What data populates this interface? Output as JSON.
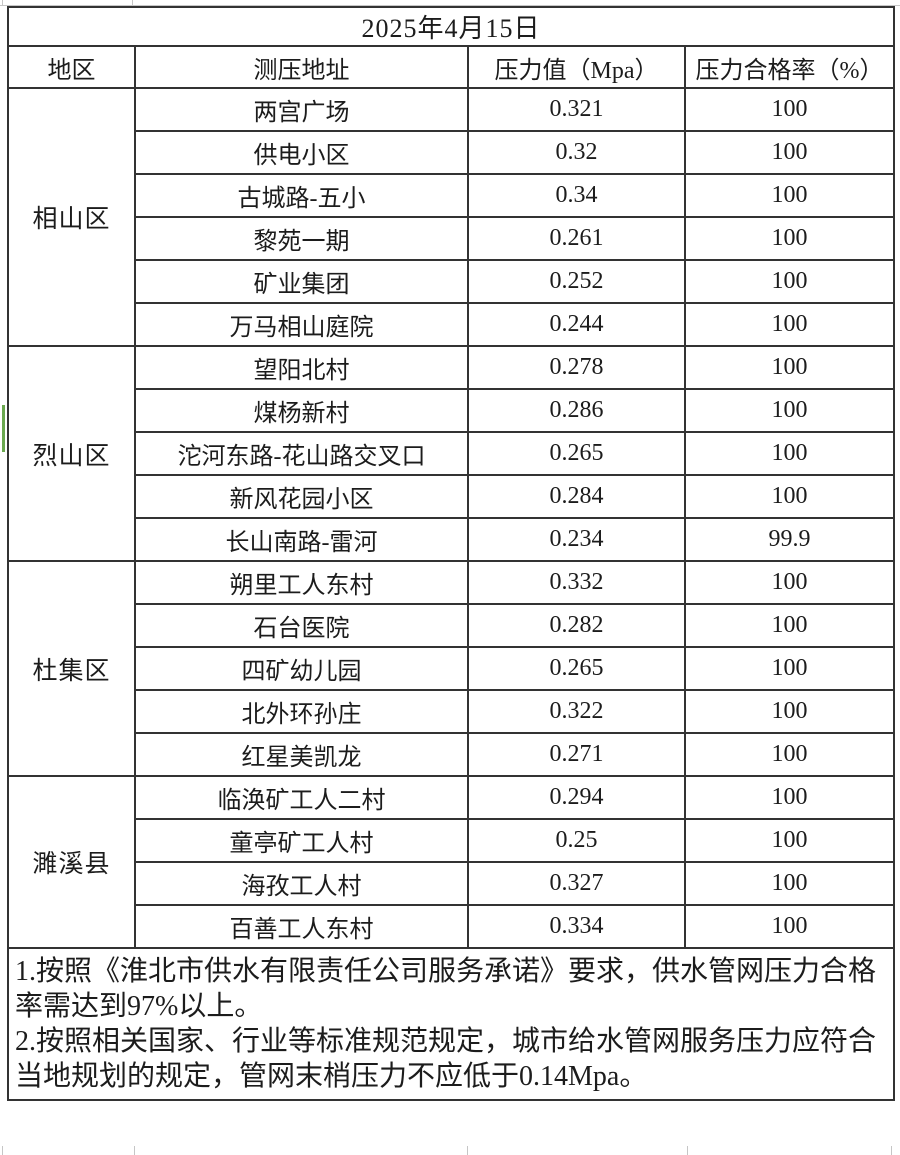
{
  "title": "2025年4月15日",
  "table": {
    "headers": [
      "地区",
      "测压地址",
      "压力值（Mpa）",
      "压力合格率（%）"
    ],
    "groups": [
      {
        "region": "相山区",
        "rows": [
          {
            "address": "两宫广场",
            "pressure": "0.321",
            "pass_rate": "100"
          },
          {
            "address": "供电小区",
            "pressure": "0.32",
            "pass_rate": "100"
          },
          {
            "address": "古城路-五小",
            "pressure": "0.34",
            "pass_rate": "100"
          },
          {
            "address": "黎苑一期",
            "pressure": "0.261",
            "pass_rate": "100"
          },
          {
            "address": "矿业集团",
            "pressure": "0.252",
            "pass_rate": "100"
          },
          {
            "address": "万马相山庭院",
            "pressure": "0.244",
            "pass_rate": "100"
          }
        ]
      },
      {
        "region": "烈山区",
        "rows": [
          {
            "address": "望阳北村",
            "pressure": "0.278",
            "pass_rate": "100"
          },
          {
            "address": "煤杨新村",
            "pressure": "0.286",
            "pass_rate": "100"
          },
          {
            "address": "沱河东路-花山路交叉口",
            "pressure": "0.265",
            "pass_rate": "100"
          },
          {
            "address": "新风花园小区",
            "pressure": "0.284",
            "pass_rate": "100"
          },
          {
            "address": "长山南路-雷河",
            "pressure": "0.234",
            "pass_rate": "99.9"
          }
        ]
      },
      {
        "region": "杜集区",
        "rows": [
          {
            "address": "朔里工人东村",
            "pressure": "0.332",
            "pass_rate": "100"
          },
          {
            "address": "石台医院",
            "pressure": "0.282",
            "pass_rate": "100"
          },
          {
            "address": "四矿幼儿园",
            "pressure": "0.265",
            "pass_rate": "100"
          },
          {
            "address": "北外环孙庄",
            "pressure": "0.322",
            "pass_rate": "100"
          },
          {
            "address": "红星美凯龙",
            "pressure": "0.271",
            "pass_rate": "100"
          }
        ]
      },
      {
        "region": "濉溪县",
        "rows": [
          {
            "address": "临涣矿工人二村",
            "pressure": "0.294",
            "pass_rate": "100"
          },
          {
            "address": "童亭矿工人村",
            "pressure": "0.25",
            "pass_rate": "100"
          },
          {
            "address": "海孜工人村",
            "pressure": "0.327",
            "pass_rate": "100"
          },
          {
            "address": "百善工人东村",
            "pressure": "0.334",
            "pass_rate": "100"
          }
        ]
      }
    ]
  },
  "notes": [
    "1.按照《淮北市供水有限责任公司服务承诺》要求，供水管网压力合格率需达到97%以上。",
    "2.按照相关国家、行业等标准规范规定，城市给水管网服务压力应符合当地规划的规定，管网末梢压力不应低于0.14Mpa。"
  ],
  "colors": {
    "green_marker": "#6aa84f",
    "table_border": "#333333",
    "light_grid": "#c6c6c6"
  }
}
